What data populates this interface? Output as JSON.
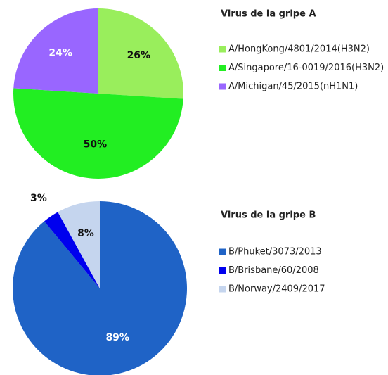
{
  "chart_data": [
    {
      "type": "pie",
      "title": "Virus de la gripe A",
      "categories": [
        "A/HongKong/4801/2014(H3N2)",
        "A/Singapore/16-0019/2016(H3N2)",
        "A/Michigan/45/2015(nH1N1)"
      ],
      "values": [
        26,
        50,
        24
      ],
      "value_labels": [
        "26%",
        "50%",
        "24%"
      ],
      "colors": [
        "#99ee5c",
        "#22ee22",
        "#9966ff"
      ]
    },
    {
      "type": "pie",
      "title": "Virus de la gripe B",
      "categories": [
        "B/Phuket/3073/2013",
        "B/Brisbane/60/2008",
        "B/Norway/2409/2017"
      ],
      "values": [
        89,
        3,
        8
      ],
      "value_labels": [
        "89%",
        "3%",
        "8%"
      ],
      "colors": [
        "#1f63c6",
        "#0000ee",
        "#c5d5ee"
      ]
    }
  ]
}
